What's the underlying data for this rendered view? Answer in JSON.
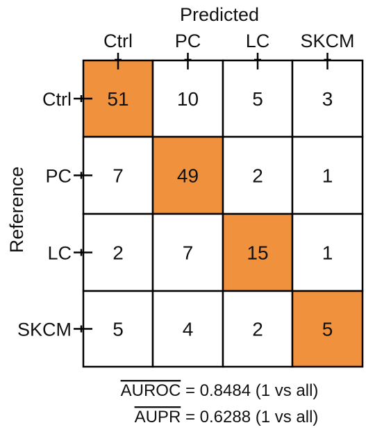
{
  "chart_data": {
    "type": "heatmap",
    "top_axis_title": "Predicted",
    "left_axis_title": "Reference",
    "columns": [
      "Ctrl",
      "PC",
      "LC",
      "SKCM"
    ],
    "rows": [
      "Ctrl",
      "PC",
      "LC",
      "SKCM"
    ],
    "values": [
      [
        51,
        10,
        5,
        3
      ],
      [
        7,
        49,
        2,
        1
      ],
      [
        2,
        7,
        15,
        1
      ],
      [
        5,
        4,
        2,
        5
      ]
    ],
    "highlight_color": "#f0913d",
    "cell_color": "#ffffff",
    "grid_color": "#000000"
  },
  "metrics": {
    "auroc_label": "AUROC",
    "auroc_value": " = 0.8484 (1 vs all)",
    "aupr_label": "AUPR",
    "aupr_value": " = 0.6288 (1 vs all)"
  }
}
